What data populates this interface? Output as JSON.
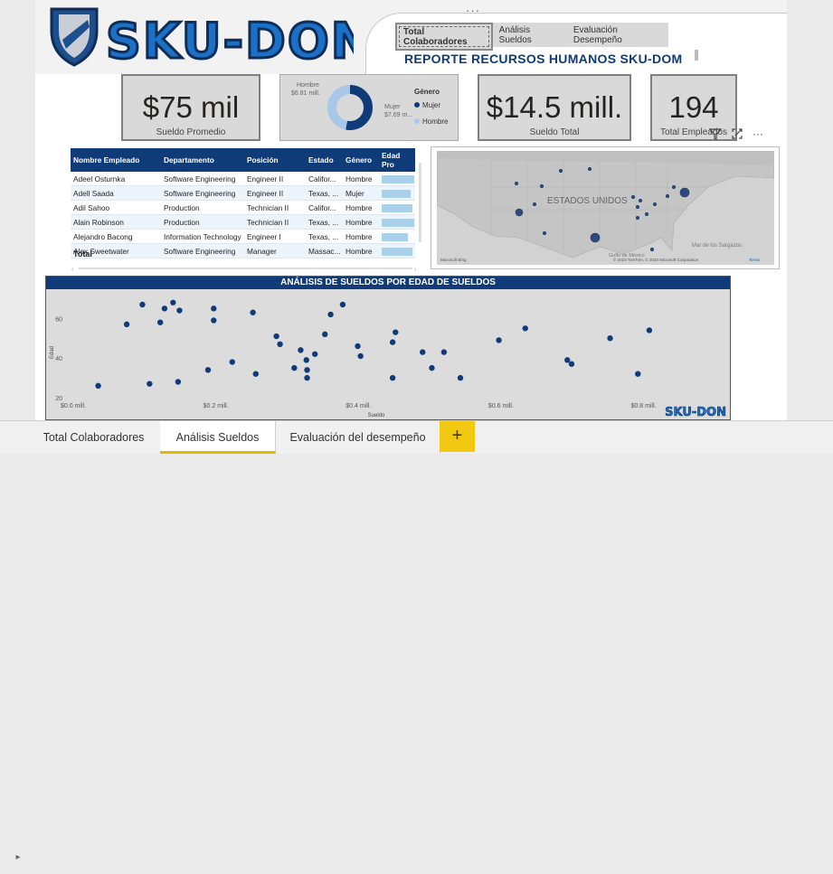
{
  "header": {
    "logo_text": "SKU-DON",
    "report_title": "REPORTE RECURSOS HUMANOS  SKU-DOM",
    "nav": [
      "Total Colaboradores",
      "Análisis Sueldos",
      "Evaluación Desempeño"
    ],
    "more": "···"
  },
  "cards": {
    "salary_avg": {
      "value": "$75 mil",
      "label": "Sueldo Promedio"
    },
    "salary_total": {
      "value": "$14.5 mill.",
      "label": "Sueldo Total"
    },
    "employees": {
      "value": "194",
      "label": "Total Empleados"
    }
  },
  "donut": {
    "legend_title": "Género",
    "legend": [
      "Mujer",
      "Hombre"
    ],
    "label_hombre": "Hombre",
    "value_hombre": "$6.81 mill.",
    "label_mujer": "Mujer",
    "value_mujer": "$7.69 m...",
    "colors": {
      "mujer": "#0f3c78",
      "hombre": "#a9c7e8"
    },
    "fractions": {
      "mujer": 0.53,
      "hombre": 0.47
    }
  },
  "table": {
    "headers": [
      "Nombre Empleado",
      "Departamento",
      "Posición",
      "Estado",
      "Género",
      "Edad Pro"
    ],
    "rows": [
      [
        "Adeel Osturnka",
        "Software Engineering",
        "Engineer II",
        "Califor...",
        "Hombre",
        0.95
      ],
      [
        "Adell Saada",
        "Software Engineering",
        "Engineer II",
        "Texas, ...",
        "Mujer",
        0.85
      ],
      [
        "Adil Sahoo",
        "Production",
        "Technician II",
        "Califor...",
        "Hombre",
        0.9
      ],
      [
        "Alain Robinson",
        "Production",
        "Technician II",
        "Texas, ...",
        "Hombre",
        0.95
      ],
      [
        "Alejandro Bacong",
        "Information Technology",
        "Engineer I",
        "Texas, ...",
        "Hombre",
        0.75
      ],
      [
        "Alex Sweetwater",
        "Software Engineering",
        "Manager",
        "Massac...",
        "Hombre",
        0.9
      ]
    ],
    "total_label": "Total"
  },
  "map": {
    "country_label": "ESTADOS UNIDOS",
    "sea_label": "Mar de los Sargazos",
    "gulf_label": "Golfo de México",
    "copyright": "© 2023 TomTom, © 2023 Microsoft Corporation",
    "terms": "Terms",
    "brand": "Microsoft Bing"
  },
  "toolbar": {
    "filter_icon": "filter-icon",
    "focus_icon": "focus-icon",
    "more": "···"
  },
  "scatter": {
    "title": "ANÁLISIS DE SUELDOS POR EDAD DE SUELDOS",
    "watermark": "SKU-DON"
  },
  "chart_data": {
    "type": "scatter",
    "title": "ANÁLISIS DE SUELDOS POR EDAD DE SUELDOS",
    "xlabel": "Sueldo",
    "ylabel": "Edad",
    "xlim": [
      0,
      0.85
    ],
    "ylim": [
      20,
      72
    ],
    "xticks": [
      "$0.0 mill.",
      "$0.2 mill.",
      "$0.4 mill.",
      "$0.6 mill.",
      "$0.8 mill."
    ],
    "yticks": [
      "20",
      "40",
      "60"
    ],
    "grid": false,
    "points": [
      [
        0.035,
        26
      ],
      [
        0.075,
        57
      ],
      [
        0.097,
        67
      ],
      [
        0.107,
        27
      ],
      [
        0.122,
        58
      ],
      [
        0.128,
        65
      ],
      [
        0.14,
        68
      ],
      [
        0.147,
        28
      ],
      [
        0.149,
        64
      ],
      [
        0.189,
        34
      ],
      [
        0.197,
        65
      ],
      [
        0.197,
        59
      ],
      [
        0.223,
        38
      ],
      [
        0.252,
        63
      ],
      [
        0.256,
        32
      ],
      [
        0.285,
        51
      ],
      [
        0.29,
        47
      ],
      [
        0.31,
        35
      ],
      [
        0.319,
        44
      ],
      [
        0.327,
        39
      ],
      [
        0.328,
        34
      ],
      [
        0.328,
        30
      ],
      [
        0.339,
        42
      ],
      [
        0.353,
        52
      ],
      [
        0.361,
        62
      ],
      [
        0.378,
        67
      ],
      [
        0.399,
        46
      ],
      [
        0.403,
        41
      ],
      [
        0.448,
        30
      ],
      [
        0.448,
        48
      ],
      [
        0.452,
        53
      ],
      [
        0.49,
        43
      ],
      [
        0.503,
        35
      ],
      [
        0.52,
        43
      ],
      [
        0.543,
        30
      ],
      [
        0.597,
        49
      ],
      [
        0.634,
        55
      ],
      [
        0.693,
        39
      ],
      [
        0.699,
        37
      ],
      [
        0.753,
        50
      ],
      [
        0.792,
        32
      ],
      [
        0.808,
        54
      ]
    ]
  },
  "tabs": {
    "items": [
      "Total Colaboradores",
      "Análisis Sueldos",
      "Evaluación del desempeño"
    ],
    "add": "+",
    "arrow": "▸"
  }
}
